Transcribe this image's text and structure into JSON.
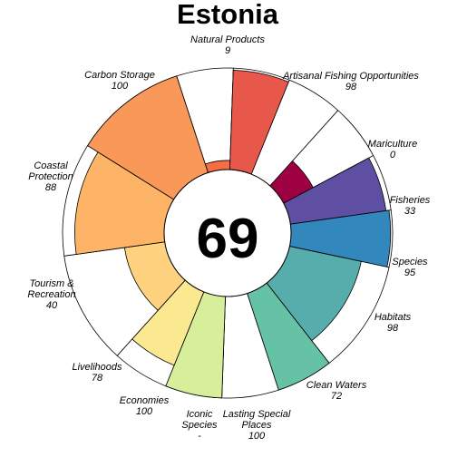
{
  "chart_data": {
    "type": "flower",
    "title": "Estonia",
    "overall_score": 69,
    "max_score": 100,
    "start_angle_deg": 342,
    "petals": [
      {
        "name": "Natural Products",
        "value": 9,
        "display": "9",
        "color": "#f46d43",
        "width": 1
      },
      {
        "name": "Artisanal Fishing Opportunities",
        "value": 98,
        "display": "98",
        "color": "#e8584a",
        "width": 1
      },
      {
        "name": "Mariculture",
        "value": 0,
        "display": "0",
        "color": "#d9394c",
        "width": 1
      },
      {
        "name": "Fisheries",
        "value": 33,
        "display": "33",
        "color": "#9e0142",
        "width": 1
      },
      {
        "name": "Species",
        "value": 95,
        "display": "95",
        "color": "#5e4fa2",
        "width": 1
      },
      {
        "name": "Habitats",
        "value": 98,
        "display": "98",
        "color": "#3288bd",
        "width": 1
      },
      {
        "name": "Clean Waters",
        "value": 72,
        "display": "72",
        "color": "#56adab",
        "width": 2
      },
      {
        "name": "Lasting Special Places",
        "value": 100,
        "display": "100",
        "color": "#66c2a5",
        "width": 1
      },
      {
        "name": "Iconic Species",
        "value": null,
        "display": "-",
        "color": "#abdda4",
        "width": 1
      },
      {
        "name": "Economies",
        "value": 100,
        "display": "100",
        "color": "#d7ef9b",
        "width": 1
      },
      {
        "name": "Livelihoods",
        "value": 78,
        "display": "78",
        "color": "#fbe992",
        "width": 1
      },
      {
        "name": "Tourism & Recreation",
        "value": 40,
        "display": "40",
        "color": "#fed27f",
        "width": 2
      },
      {
        "name": "Coastal Protection",
        "value": 88,
        "display": "88",
        "color": "#fdb466",
        "width": 2
      },
      {
        "name": "Carbon Storage",
        "value": 100,
        "display": "100",
        "color": "#f99858",
        "width": 2
      }
    ]
  }
}
